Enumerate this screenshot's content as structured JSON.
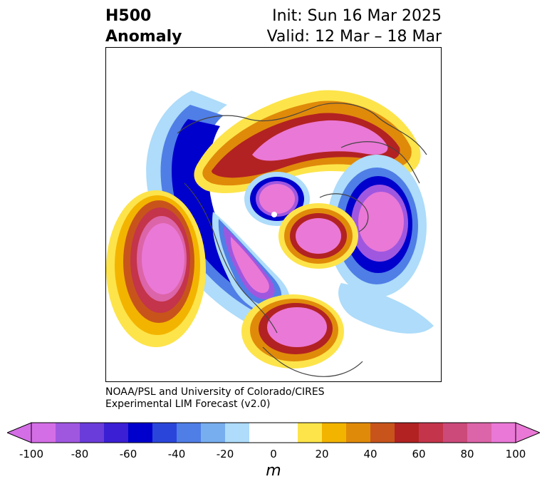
{
  "title": {
    "left_line1": "H500",
    "left_line2": "Anomaly",
    "right_line1": "Init: Sun 16 Mar 2025",
    "right_line2": "Valid: 12 Mar – 18 Mar"
  },
  "credit": {
    "line1": "NOAA/PSL and University of Colorado/CIRES",
    "line2": "Experimental LIM Forecast (v2.0)"
  },
  "colorbar": {
    "unit": "m",
    "ticks": [
      "-100",
      "-80",
      "-60",
      "-40",
      "-20",
      "0",
      "20",
      "40",
      "60",
      "80",
      "100"
    ],
    "colors": [
      "#d46ee6",
      "#a057e0",
      "#6a3cd9",
      "#3a1fd4",
      "#0000cc",
      "#2a46da",
      "#4f7ee6",
      "#77aef0",
      "#aedcfa",
      "#ffffff",
      "#ffffff",
      "#fde44a",
      "#f3b400",
      "#e08a0a",
      "#c8541b",
      "#b22222",
      "#c4344a",
      "#cc4a7a",
      "#dc64a8",
      "#ea78d6"
    ],
    "under_color": "#d46ee6",
    "over_color": "#ea78d6"
  }
}
